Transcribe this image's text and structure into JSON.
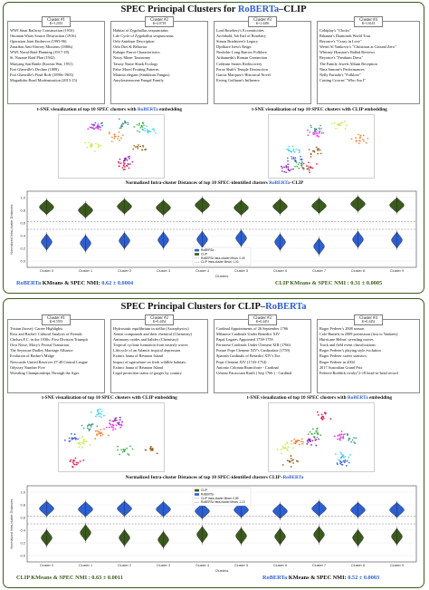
{
  "top": {
    "title_prefix": "SPEC Principal Clusters for ",
    "title_a": "RoBERTa",
    "title_sep": "–",
    "title_b": "CLIP",
    "clusters": [
      {
        "tag": "Cluster #1",
        "k": "K=1.2555",
        "lines": [
          "WWI Sinai Railway Construction (1916)",
          "Ottoman Water Source Destruction (1916)",
          "Operation Joint Endeavor (1995-96)",
          "Zanzibar Anti-Slavery Missions (1880s)",
          "WWI Naval-Raid Planning (1917-18)",
          "St. Nazaire Raid Plan (1942)",
          "Maryang San Battle (Korean War, 1951)",
          "Fort Glanville's Decline (1889)",
          "Fort Glanville's Final Role (1890s-1903)",
          "Mogadishu Road Modernization (2013-15)"
        ]
      },
      {
        "tag": "Cluster #2",
        "k": "K=2.0718",
        "lines": [
          "Habitat of Zygoballus sexpunctatus",
          "Life Cycle of Zygoballus sexpunctatus",
          "Orbi Antelope Description",
          "Orbi Diet & Behavior",
          "Kakapo Parrot Characteristics",
          "Noisy Miner Taxonomy",
          "Tawny Nurse Shark Ecology",
          "False Morel Fruiting Patterns",
          "Marimo elegans (Stinkhorn Fungus)",
          "Amylostereaceae Fungal Family"
        ]
      },
      {
        "tag": "Cluster #3",
        "k": "K=1.4456",
        "lines": [
          "Lord Rosebery's Eccentricities",
          "Archibald, 5th Earl of Rosebery",
          "Simon Bradstreet's Legacy",
          "Djedkare Isesi's Reign",
          "Neolithic Long Barrow Folklore",
          "Arikamedu's Roman Connection",
          "Coldrum Stones Rediscovery",
          "Feroz Shah's Temple Destruction",
          "Garcia Marquez's Historical Novel",
          "Erving Goffman's Influence"
        ]
      },
      {
        "tag": "Cluster #4",
        "k": "K=1.6143",
        "lines": [
          "Coldplay's \"Clocks\"",
          "Rihanna's Diamonds World Tour",
          "Beyonce's \"Crazy in Love\"",
          "Weird Al Yankovic's \"Christmas at Ground Zero\"",
          "Whitney Houston's Ballad Reviews",
          "Beyonce's \"Freakum Dress\"",
          "The Family Jewels Album Reception",
          "Nina Simone's Performances",
          "Nelly Furtado's \"Folklore\"",
          "Casting Crowns' \"Who Am I\""
        ]
      }
    ],
    "tsne_a_caption_prefix": "t-SNE visualization of top 10 SPEC clusters with ",
    "tsne_a_caption_model": "RoBERTa",
    "tsne_b_caption_model": "CLIP",
    "caption_suffix": " embedding",
    "violin_caption_prefix": "Normalized Intra-cluster Distances of top 10 SPEC-identified clusters ",
    "violin_caption_a": "RoBERTa",
    "violin_caption_sep": "–",
    "violin_caption_b": "CLIP",
    "footer_left_model": "RoBERTa",
    "footer_left_rest": " KMeans & SPEC NMI: ",
    "footer_left_value": "0.62 ± 0.0004",
    "footer_right_model": "CLIP",
    "footer_right_rest": " KMeans & SPEC NMI : ",
    "footer_right_value": "0.31 ± 0.0005"
  },
  "bottom": {
    "title_prefix": "SPEC Principal Clusters for ",
    "title_a": "CLIP",
    "title_sep": "–",
    "title_b": "RoBERTa",
    "clusters": [
      {
        "tag": "Cluster #1",
        "k": "K=0.5555",
        "lines": [
          "Tristan (horse): Career Highlights",
          "Ross and Rachel: Cultural Analysis of Friends",
          "Chelsea F.C. in the 1930s: First Division Triumph",
          "Orra Noise, Macy's Pivotal Transition",
          "The Seymour-Dudley Marriage Alliance",
          "Evolution of Barbie's Midge",
          "Newcastle United Reserves 47-48 Central League",
          "Odyssey Number Five",
          "Wrestling Championships Through the Ages"
        ]
      },
      {
        "tag": "Cluster #2",
        "k": "K=0.4454",
        "lines": [
          "Hydrostatic equilibrium in stellar (Astrophysics)",
          "Xenon compounds and their chemical (Chemistry)",
          "Antimony oxides and halides (Chemistry)",
          "Tropical cyclone formation from easterly waves",
          "Lifecycle of an Atlantic tropical depression",
          "Extinct fauna of Réunion Island",
          "Impact of agriculture on fresh wildlife habitats",
          "Extinct fauna of Réunion Island",
          "Legal protection status of gorges by country"
        ]
      },
      {
        "tag": "Cluster #3",
        "k": "K=0.4451",
        "lines": [
          "Cardinal Appointments of 26 September 1766",
          "Milanese Cardinals Under Benedict XIV",
          "Papal Legates Appointed 1758-1759",
          "Ferrarese Cardinals Under Clement XIII (1766)",
          "Future Pope Clement XIV's Cardinalate (1759)",
          "Spanish Cardinals of Benedict XIV's Era",
          "Pope Clement XIV (1743-1754)",
          "Antonio Colonna Branciforte - Cardinal",
          "Urbano Paracciani Rutili ( Sep 1766 ) - Cardinal"
        ]
      },
      {
        "tag": "Cluster #4",
        "k": "K=0.4452",
        "lines": [
          "Roger Federer's 2008 season",
          "Cole Hamels in 2009 postseason (loss to Yankees)",
          "Hurricane Helms' wrestling moves",
          "Track and field event classifications",
          "Roger Federer's playing style evolution",
          "Roger Federer career statistics",
          "Roger Federer in 2004",
          "2017 Australian Grand Prix",
          "Federer-Roddick rivalry\"2-18 head-to-head record"
        ]
      }
    ],
    "tsne_a_caption_prefix": "t-SNE visualization of top 10 SPEC clusters with ",
    "tsne_a_caption_model": "CLIP",
    "tsne_b_caption_model": "RoBERTa",
    "caption_suffix": " embedding",
    "violin_caption_prefix": "Normalized Intra-cluster Distances of top 10 SPEC-identified clusters ",
    "violin_caption_a": "CLIP",
    "violin_caption_sep": "–",
    "violin_caption_b": "RoBERTa",
    "footer_left_model": "CLIP",
    "footer_left_rest": " KMeans & SPEC NMI : ",
    "footer_left_value": "0.63 ± 0.0011",
    "footer_right_model": "RoBERTa",
    "footer_right_rest": " KMeans & SPEC NMI: ",
    "footer_right_value": "0.52 ± 0.0003"
  },
  "colors": {
    "roberta": "#2d5fd0",
    "clip": "#3b5a1e",
    "frame": "#3a5c1a",
    "clip_mean": "#3b5a1e",
    "roberta_mean": "#111111"
  },
  "chart_data": [
    {
      "type": "violin",
      "title": "Normalized Intra-cluster Distances of top 10 SPEC-identified clusters RoBERTa–CLIP",
      "xlabel": "Clusters",
      "ylabel": "Normalized Intra-cluster Distances",
      "categories": [
        "Cluster 0",
        "Cluster 1",
        "Cluster 2",
        "Cluster 3",
        "Cluster 4",
        "Cluster 5",
        "Cluster 6",
        "Cluster 7",
        "Cluster 8",
        "Cluster 9"
      ],
      "ylim": [
        -0.1,
        1.1
      ],
      "legend": [
        "RoBERTa",
        "CLIP",
        "RoBERTa Intra-cluster Mean: 0.49",
        "CLIP Intra-cluster Mean: 1.03"
      ],
      "legend_position": "bottom-center",
      "series": [
        {
          "name": "RoBERTa",
          "centers": [
            0.3,
            0.28,
            0.32,
            0.33,
            0.34,
            0.36,
            0.3,
            0.23,
            0.34,
            0.33
          ]
        },
        {
          "name": "CLIP",
          "centers": [
            0.85,
            0.8,
            0.86,
            0.84,
            0.88,
            0.84,
            0.86,
            0.87,
            0.9,
            0.88
          ]
        }
      ]
    },
    {
      "type": "violin",
      "title": "Normalized Intra-cluster Distances of top 10 SPEC-identified clusters CLIP–RoBERTa",
      "xlabel": "Clusters",
      "ylabel": "Normalized Intra-cluster Distances",
      "categories": [
        "Cluster 0",
        "Cluster 1",
        "Cluster 2",
        "Cluster 3",
        "Cluster 4",
        "Cluster 5",
        "Cluster 6",
        "Cluster 7",
        "Cluster 8",
        "Cluster 9"
      ],
      "ylim": [
        -0.1,
        1.1
      ],
      "legend": [
        "CLIP",
        "RoBERTa",
        "CLIP Intra-cluster Mean: 0.89",
        "RoBERTa Intra-cluster Mean: 1.13"
      ],
      "legend_position": "top-center",
      "series": [
        {
          "name": "CLIP",
          "centers": [
            0.28,
            0.36,
            0.28,
            0.25,
            0.33,
            0.31,
            0.3,
            0.33,
            0.28,
            0.3
          ]
        },
        {
          "name": "RoBERTa",
          "centers": [
            0.74,
            0.73,
            0.74,
            0.73,
            0.7,
            0.72,
            0.7,
            0.74,
            0.72,
            0.72
          ]
        }
      ]
    }
  ]
}
